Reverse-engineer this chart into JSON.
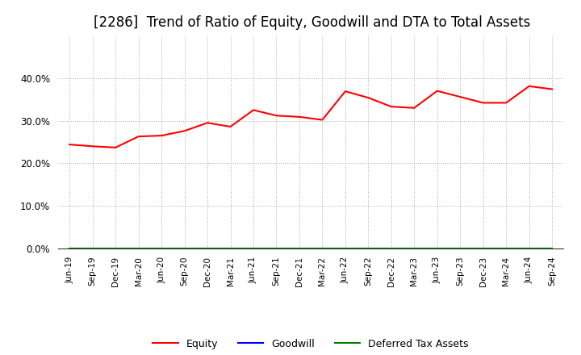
{
  "title": "[2286]  Trend of Ratio of Equity, Goodwill and DTA to Total Assets",
  "x_labels": [
    "Jun-19",
    "Sep-19",
    "Dec-19",
    "Mar-20",
    "Jun-20",
    "Sep-20",
    "Dec-20",
    "Mar-21",
    "Jun-21",
    "Sep-21",
    "Dec-21",
    "Mar-22",
    "Jun-22",
    "Sep-22",
    "Dec-22",
    "Mar-23",
    "Jun-23",
    "Sep-23",
    "Dec-23",
    "Mar-24",
    "Jun-24",
    "Sep-24"
  ],
  "equity": [
    0.244,
    0.24,
    0.237,
    0.263,
    0.265,
    0.276,
    0.295,
    0.286,
    0.325,
    0.312,
    0.309,
    0.302,
    0.369,
    0.354,
    0.333,
    0.33,
    0.37,
    0.356,
    0.342,
    0.342,
    0.381,
    0.374
  ],
  "goodwill": [
    0.0,
    0.0,
    0.0,
    0.0,
    0.0,
    0.0,
    0.0,
    0.0,
    0.0,
    0.0,
    0.0,
    0.0,
    0.0,
    0.0,
    0.0,
    0.0,
    0.0,
    0.0,
    0.0,
    0.0,
    0.0,
    0.0
  ],
  "dta": [
    0.0,
    0.0,
    0.0,
    0.0,
    0.0,
    0.0,
    0.0,
    0.0,
    0.0,
    0.0,
    0.0,
    0.0,
    0.0,
    0.0,
    0.0,
    0.0,
    0.0,
    0.0,
    0.0,
    0.0,
    0.0,
    0.0
  ],
  "equity_color": "#FF0000",
  "goodwill_color": "#0000FF",
  "dta_color": "#008000",
  "ylim": [
    0.0,
    0.5
  ],
  "yticks": [
    0.0,
    0.1,
    0.2,
    0.3,
    0.4
  ],
  "background_color": "#FFFFFF",
  "plot_bg_color": "#FFFFFF",
  "grid_color": "#AAAAAA",
  "title_fontsize": 12,
  "legend_labels": [
    "Equity",
    "Goodwill",
    "Deferred Tax Assets"
  ]
}
